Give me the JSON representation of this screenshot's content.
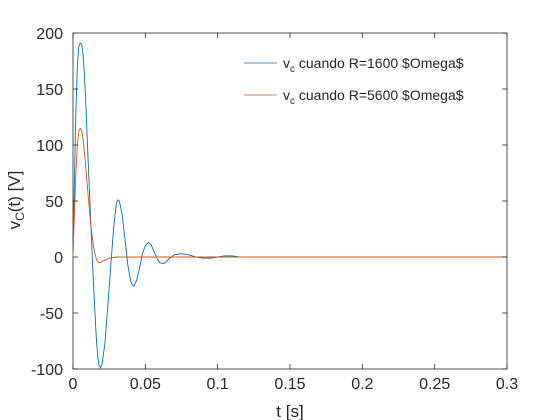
{
  "chart_data": {
    "type": "line",
    "title": "",
    "xlabel": "t [s]",
    "ylabel_main": "v",
    "ylabel_sub": "C",
    "ylabel_rest": "(t) [V]",
    "xlim": [
      0,
      0.3
    ],
    "ylim": [
      -100,
      200
    ],
    "xticks": [
      0,
      0.05,
      0.1,
      0.15,
      0.2,
      0.25,
      0.3
    ],
    "xtick_labels": [
      "0",
      "0.05",
      "0.1",
      "0.15",
      "0.2",
      "0.25",
      "0.3"
    ],
    "yticks": [
      -100,
      -50,
      0,
      50,
      100,
      150,
      200
    ],
    "ytick_labels": [
      "-100",
      "-50",
      "0",
      "50",
      "100",
      "150",
      "200"
    ],
    "grid": false,
    "legend_position": "top-right",
    "series": [
      {
        "legend_main": "v",
        "legend_sub": "c",
        "legend_rest": " cuando R=1600 $Omega$",
        "color": "#0072BD",
        "points": [
          [
            0,
            0
          ],
          [
            0.001,
            70
          ],
          [
            0.002,
            130
          ],
          [
            0.003,
            170
          ],
          [
            0.004,
            188
          ],
          [
            0.005,
            191
          ],
          [
            0.006,
            190
          ],
          [
            0.007,
            180
          ],
          [
            0.008,
            160
          ],
          [
            0.009,
            133
          ],
          [
            0.01,
            100
          ],
          [
            0.012,
            40
          ],
          [
            0.014,
            -20
          ],
          [
            0.016,
            -70
          ],
          [
            0.017,
            -88
          ],
          [
            0.018,
            -97
          ],
          [
            0.019,
            -99
          ],
          [
            0.02,
            -96
          ],
          [
            0.022,
            -78
          ],
          [
            0.024,
            -45
          ],
          [
            0.026,
            -10
          ],
          [
            0.028,
            25
          ],
          [
            0.03,
            48
          ],
          [
            0.031,
            51
          ],
          [
            0.032,
            50
          ],
          [
            0.034,
            38
          ],
          [
            0.036,
            15
          ],
          [
            0.038,
            -8
          ],
          [
            0.04,
            -22
          ],
          [
            0.041,
            -25
          ],
          [
            0.042,
            -26
          ],
          [
            0.044,
            -21
          ],
          [
            0.046,
            -10
          ],
          [
            0.048,
            3
          ],
          [
            0.05,
            10
          ],
          [
            0.052,
            13
          ],
          [
            0.054,
            11
          ],
          [
            0.056,
            5
          ],
          [
            0.058,
            -1
          ],
          [
            0.06,
            -5
          ],
          [
            0.062,
            -6
          ],
          [
            0.064,
            -5
          ],
          [
            0.066,
            -2
          ],
          [
            0.068,
            0
          ],
          [
            0.07,
            2
          ],
          [
            0.075,
            3
          ],
          [
            0.08,
            2
          ],
          [
            0.085,
            0
          ],
          [
            0.09,
            -1
          ],
          [
            0.095,
            -1
          ],
          [
            0.1,
            0
          ],
          [
            0.105,
            1
          ],
          [
            0.11,
            1
          ],
          [
            0.115,
            0
          ],
          [
            0.12,
            0
          ],
          [
            0.3,
            0
          ]
        ]
      },
      {
        "legend_main": "v",
        "legend_sub": "c",
        "legend_rest": " cuando R=5600 $Omega$",
        "color": "#D95319",
        "points": [
          [
            0,
            0
          ],
          [
            0.001,
            40
          ],
          [
            0.002,
            75
          ],
          [
            0.003,
            100
          ],
          [
            0.004,
            112
          ],
          [
            0.005,
            115
          ],
          [
            0.006,
            113
          ],
          [
            0.007,
            105
          ],
          [
            0.008,
            92
          ],
          [
            0.009,
            78
          ],
          [
            0.01,
            62
          ],
          [
            0.011,
            47
          ],
          [
            0.012,
            33
          ],
          [
            0.013,
            21
          ],
          [
            0.014,
            11
          ],
          [
            0.015,
            4
          ],
          [
            0.016,
            -1
          ],
          [
            0.017,
            -4
          ],
          [
            0.018,
            -5
          ],
          [
            0.019,
            -5
          ],
          [
            0.02,
            -4
          ],
          [
            0.022,
            -3
          ],
          [
            0.025,
            -1
          ],
          [
            0.03,
            0
          ],
          [
            0.035,
            0
          ],
          [
            0.3,
            0
          ]
        ]
      }
    ]
  }
}
